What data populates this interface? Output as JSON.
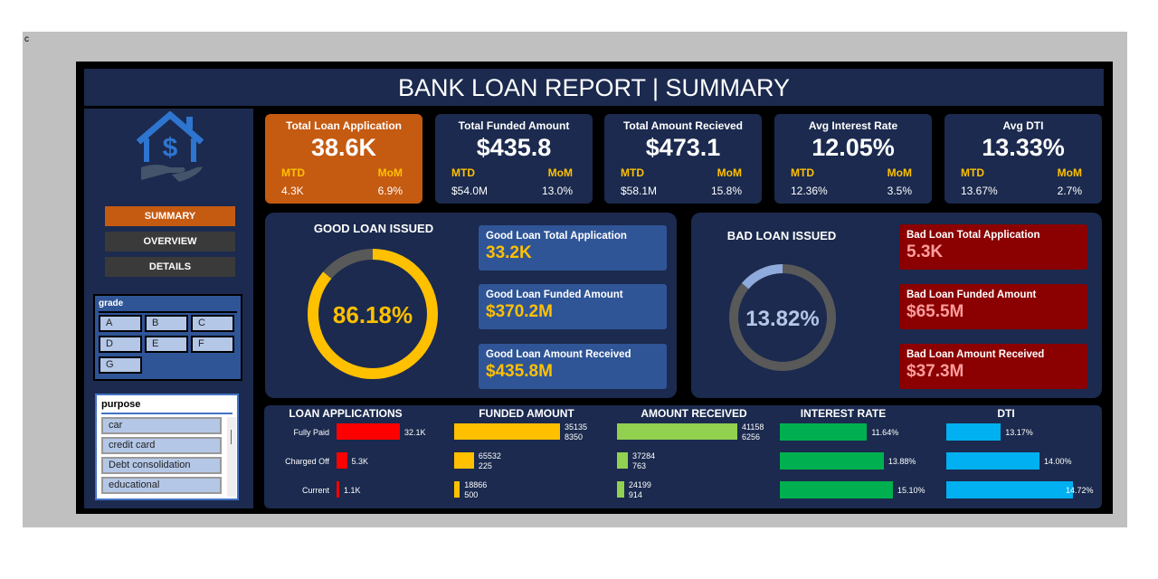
{
  "cell_text": "c",
  "title": "BANK LOAN REPORT | SUMMARY",
  "nav": [
    {
      "label": "SUMMARY",
      "active": true
    },
    {
      "label": "OVERVIEW",
      "active": false
    },
    {
      "label": "DETAILS",
      "active": false
    }
  ],
  "grade_slicer": {
    "title": "grade",
    "items": [
      "A",
      "B",
      "C",
      "D",
      "E",
      "F",
      "G"
    ]
  },
  "purpose_slicer": {
    "title": "purpose",
    "items": [
      "car",
      "credit card",
      "Debt consolidation",
      "educational"
    ]
  },
  "kpis": [
    {
      "title": "Total Loan Application",
      "value": "38.6K",
      "mtd_label": "MTD",
      "mom_label": "MoM",
      "mtd": "4.3K",
      "mom": "6.9%",
      "color": "#c55a11"
    },
    {
      "title": "Total Funded Amount",
      "value": "$435.8",
      "mtd_label": "MTD",
      "mom_label": "MoM",
      "mtd": "$54.0M",
      "mom": "13.0%",
      "color": "#1b2a4e"
    },
    {
      "title": "Total Amount Recieved",
      "value": "$473.1",
      "mtd_label": "MTD",
      "mom_label": "MoM",
      "mtd": "$58.1M",
      "mom": "15.8%",
      "color": "#1b2a4e"
    },
    {
      "title": "Avg Interest Rate",
      "value": "12.05%",
      "mtd_label": "MTD",
      "mom_label": "MoM",
      "mtd": "12.36%",
      "mom": "3.5%",
      "color": "#1b2a4e"
    },
    {
      "title": "Avg DTI",
      "value": "13.33%",
      "mtd_label": "MTD",
      "mom_label": "MoM",
      "mtd": "13.67%",
      "mom": "2.7%",
      "color": "#1b2a4e"
    }
  ],
  "good": {
    "title": "GOOD LOAN ISSUED",
    "percent_label": "86.18%",
    "percent": 86.18,
    "color": "#ffc000",
    "rest_color": "#595959",
    "items": [
      {
        "label": "Good Loan Total Application",
        "value": "33.2K"
      },
      {
        "label": "Good Loan Funded Amount",
        "value": "$370.2M"
      },
      {
        "label": "Good Loan Amount Received",
        "value": "$435.8M"
      }
    ]
  },
  "bad": {
    "title": "BAD LOAN ISSUED",
    "percent_label": "13.82%",
    "percent": 13.82,
    "color": "#8faadc",
    "rest_color": "#595959",
    "items": [
      {
        "label": "Bad Loan Total Application",
        "value": "5.3K"
      },
      {
        "label": "Bad Loan Funded Amount",
        "value": "$65.5M"
      },
      {
        "label": "Bad Loan Amount Received",
        "value": "$37.3M"
      }
    ]
  },
  "chart_data": [
    {
      "type": "bar",
      "title": "LOAN APPLICATIONS",
      "categories": [
        "Fully Paid",
        "Charged Off",
        "Current"
      ],
      "values": [
        32.1,
        5.3,
        1.1
      ],
      "labels": [
        [
          "32.1K"
        ],
        [
          "5.3K"
        ],
        [
          "1.1K"
        ]
      ],
      "color": "#ff0000",
      "xlim": [
        0,
        32.1
      ]
    },
    {
      "type": "bar",
      "title": "FUNDED AMOUNT",
      "categories": [
        "Fully Paid",
        "Charged Off",
        "Current"
      ],
      "values": [
        351358350,
        65532225,
        18866500
      ],
      "labels": [
        [
          "35135",
          "8350"
        ],
        [
          "65532",
          "225"
        ],
        [
          "18866",
          "500"
        ]
      ],
      "color": "#ffc000",
      "xlim": [
        0,
        351358350
      ]
    },
    {
      "type": "bar",
      "title": "AMOUNT RECEIVED",
      "categories": [
        "Fully Paid",
        "Charged Off",
        "Current"
      ],
      "values": [
        411586256,
        37284763,
        24199914
      ],
      "labels": [
        [
          "41158",
          "6256"
        ],
        [
          "37284",
          "763"
        ],
        [
          "24199",
          "914"
        ]
      ],
      "color": "#92d050",
      "xlim": [
        0,
        411586256
      ]
    },
    {
      "type": "bar",
      "title": "INTEREST RATE",
      "categories": [
        "Fully Paid",
        "Charged Off",
        "Current"
      ],
      "values": [
        11.64,
        13.88,
        15.1
      ],
      "labels": [
        [
          "11.64%"
        ],
        [
          "13.88%"
        ],
        [
          "15.10%"
        ]
      ],
      "color": "#00b050",
      "xlim": [
        0,
        15.1
      ]
    },
    {
      "type": "bar",
      "title": "DTI",
      "categories": [
        "Fully Paid",
        "Charged Off",
        "Current"
      ],
      "values": [
        13.17,
        14.0,
        14.72
      ],
      "labels": [
        [
          "13.17%"
        ],
        [
          "14.00%"
        ],
        [
          "14.72%"
        ]
      ],
      "color": "#00b0f0",
      "xlim": [
        12,
        14.72
      ]
    }
  ]
}
